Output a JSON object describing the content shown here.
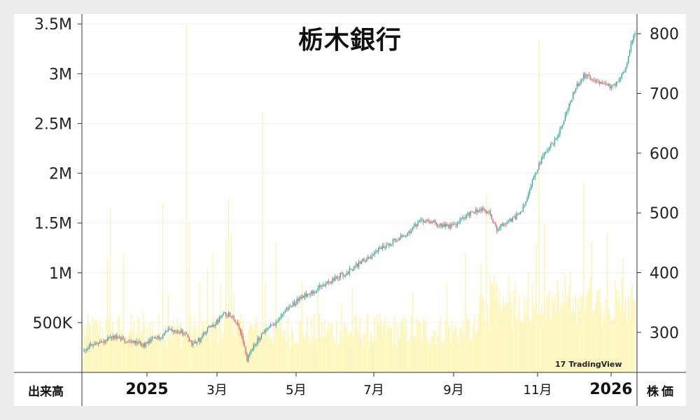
{
  "chart_data": {
    "type": "candlestick+bar",
    "title": "栃木銀行",
    "left_axis_label": "出来高",
    "right_axis_label": "株価",
    "x_ticks": [
      {
        "label": "2025",
        "bold": true,
        "date": "2025-01"
      },
      {
        "label": "3月",
        "bold": false,
        "date": "2025-03"
      },
      {
        "label": "5月",
        "bold": false,
        "date": "2025-05"
      },
      {
        "label": "7月",
        "bold": false,
        "date": "2025-07"
      },
      {
        "label": "9月",
        "bold": false,
        "date": "2025-09"
      },
      {
        "label": "11月",
        "bold": false,
        "date": "2025-11"
      },
      {
        "label": "2026",
        "bold": true,
        "date": "2026-01"
      }
    ],
    "volume_axis": {
      "ticks": [
        "500K",
        "1M",
        "1.5M",
        "2M",
        "2.5M",
        "3M",
        "3.5M"
      ],
      "values": [
        500000,
        1000000,
        1500000,
        2000000,
        2500000,
        3000000,
        3500000
      ]
    },
    "price_axis": {
      "ticks": [
        "300",
        "400",
        "500",
        "600",
        "700",
        "800"
      ],
      "values": [
        300,
        400,
        500,
        600,
        700,
        800
      ]
    },
    "price_range": [
      233,
      833
    ],
    "volume_range": [
      0,
      3600000
    ],
    "volume_color": "#fff3a8",
    "up_color": "#26a69a",
    "down_color": "#ef5350",
    "price_anchors": [
      [
        0,
        268
      ],
      [
        8,
        283
      ],
      [
        15,
        283
      ],
      [
        22,
        293
      ],
      [
        28,
        288
      ],
      [
        34,
        283
      ],
      [
        40,
        283
      ],
      [
        46,
        278
      ],
      [
        52,
        288
      ],
      [
        58,
        293
      ],
      [
        64,
        305
      ],
      [
        70,
        305
      ],
      [
        76,
        300
      ],
      [
        82,
        282
      ],
      [
        88,
        288
      ],
      [
        94,
        305
      ],
      [
        100,
        315
      ],
      [
        106,
        330
      ],
      [
        112,
        330
      ],
      [
        118,
        310
      ],
      [
        124,
        255
      ],
      [
        130,
        280
      ],
      [
        136,
        300
      ],
      [
        142,
        310
      ],
      [
        148,
        320
      ],
      [
        152,
        335
      ],
      [
        158,
        345
      ],
      [
        164,
        358
      ],
      [
        170,
        365
      ],
      [
        176,
        370
      ],
      [
        182,
        380
      ],
      [
        188,
        385
      ],
      [
        194,
        395
      ],
      [
        200,
        400
      ],
      [
        206,
        410
      ],
      [
        212,
        420
      ],
      [
        218,
        425
      ],
      [
        224,
        440
      ],
      [
        230,
        445
      ],
      [
        236,
        455
      ],
      [
        242,
        460
      ],
      [
        248,
        470
      ],
      [
        254,
        482
      ],
      [
        260,
        488
      ],
      [
        266,
        484
      ],
      [
        272,
        480
      ],
      [
        278,
        478
      ],
      [
        284,
        482
      ],
      [
        290,
        495
      ],
      [
        296,
        503
      ],
      [
        302,
        505
      ],
      [
        308,
        500
      ],
      [
        314,
        472
      ],
      [
        320,
        483
      ],
      [
        326,
        490
      ],
      [
        332,
        500
      ],
      [
        336,
        520
      ],
      [
        340,
        550
      ],
      [
        346,
        580
      ],
      [
        352,
        605
      ],
      [
        358,
        620
      ],
      [
        364,
        650
      ],
      [
        368,
        675
      ],
      [
        374,
        710
      ],
      [
        380,
        730
      ],
      [
        386,
        725
      ],
      [
        392,
        720
      ],
      [
        398,
        712
      ],
      [
        402,
        712
      ],
      [
        408,
        725
      ],
      [
        412,
        745
      ],
      [
        418,
        800
      ]
    ],
    "volume_spikes": [
      [
        18,
        1150000
      ],
      [
        20,
        1650000
      ],
      [
        30,
        1200000
      ],
      [
        45,
        620000
      ],
      [
        60,
        1700000
      ],
      [
        64,
        800000
      ],
      [
        78,
        3500000
      ],
      [
        80,
        1500000
      ],
      [
        88,
        900000
      ],
      [
        94,
        1050000
      ],
      [
        98,
        1200000
      ],
      [
        104,
        900000
      ],
      [
        108,
        1350000
      ],
      [
        110,
        1750000
      ],
      [
        112,
        1400000
      ],
      [
        114,
        800000
      ],
      [
        136,
        2620000
      ],
      [
        138,
        900000
      ],
      [
        146,
        1300000
      ],
      [
        166,
        900000
      ],
      [
        178,
        800000
      ],
      [
        196,
        700000
      ],
      [
        204,
        850000
      ],
      [
        224,
        500000
      ],
      [
        250,
        800000
      ],
      [
        276,
        900000
      ],
      [
        290,
        1200000
      ],
      [
        302,
        1100000
      ],
      [
        306,
        1800000
      ],
      [
        314,
        900000
      ],
      [
        322,
        700000
      ],
      [
        338,
        1000000
      ],
      [
        344,
        1300000
      ],
      [
        346,
        3350000
      ],
      [
        350,
        1500000
      ],
      [
        380,
        1900000
      ],
      [
        386,
        1300000
      ],
      [
        398,
        1400000
      ],
      [
        410,
        1150000
      ]
    ]
  },
  "watermark": {
    "text": "TradingView",
    "mark": "17"
  }
}
